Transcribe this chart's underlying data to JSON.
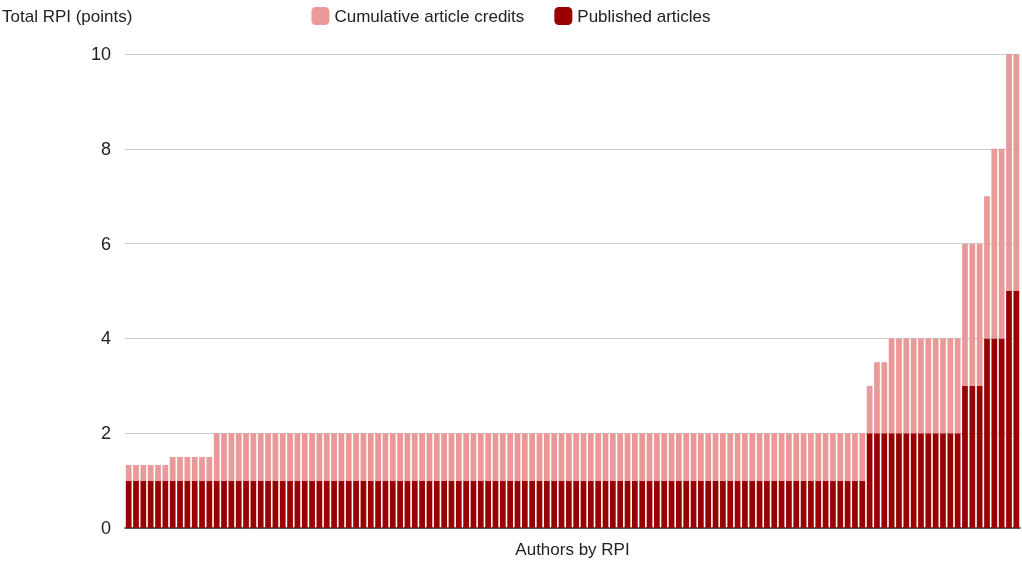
{
  "chart_data": {
    "type": "bar",
    "stacked": true,
    "ylabel": "Total RPI (points)",
    "xlabel": "Authors by RPI",
    "categories": [
      null,
      null,
      null,
      null,
      null,
      null,
      null,
      null,
      null,
      null,
      null,
      null,
      null,
      null,
      null,
      null,
      null,
      null,
      null,
      null,
      null,
      null,
      null,
      null,
      null,
      null,
      null,
      null,
      null,
      null,
      null,
      null,
      null,
      null,
      null,
      null,
      null,
      null,
      null,
      null,
      null,
      null,
      null,
      null,
      null,
      null,
      null,
      null,
      null,
      null,
      null,
      null,
      null,
      null,
      null,
      null,
      null,
      null,
      null,
      null,
      null,
      null,
      null,
      null,
      null,
      null,
      null,
      null,
      null,
      null,
      null,
      null,
      null,
      null,
      null,
      null,
      null,
      null,
      null,
      null,
      null,
      null,
      null,
      null,
      null,
      null,
      null,
      null,
      null,
      null,
      null,
      null,
      null,
      null,
      null,
      null,
      null,
      null,
      null,
      null,
      null,
      null,
      null,
      null,
      null,
      null,
      null,
      null,
      null,
      null,
      null,
      null,
      null,
      null,
      null,
      null,
      null,
      null,
      null,
      null,
      null,
      null
    ],
    "series": [
      {
        "name": "Published articles",
        "color": "#990000",
        "values": [
          1,
          1,
          1,
          1,
          1,
          1,
          1,
          1,
          1,
          1,
          1,
          1,
          1,
          1,
          1,
          1,
          1,
          1,
          1,
          1,
          1,
          1,
          1,
          1,
          1,
          1,
          1,
          1,
          1,
          1,
          1,
          1,
          1,
          1,
          1,
          1,
          1,
          1,
          1,
          1,
          1,
          1,
          1,
          1,
          1,
          1,
          1,
          1,
          1,
          1,
          1,
          1,
          1,
          1,
          1,
          1,
          1,
          1,
          1,
          1,
          1,
          1,
          1,
          1,
          1,
          1,
          1,
          1,
          1,
          1,
          1,
          1,
          1,
          1,
          1,
          1,
          1,
          1,
          1,
          1,
          1,
          1,
          1,
          1,
          1,
          1,
          1,
          1,
          1,
          1,
          1,
          1,
          1,
          1,
          1,
          1,
          1,
          1,
          1,
          1,
          1,
          2,
          2,
          2,
          2,
          2,
          2,
          2,
          2,
          2,
          2,
          2,
          2,
          2,
          3,
          3,
          3,
          4,
          4,
          4,
          5,
          5
        ]
      },
      {
        "name": "Cumulative article credits",
        "color": "#ea9999",
        "values": [
          0.33,
          0.33,
          0.33,
          0.33,
          0.33,
          0.33,
          0.5,
          0.5,
          0.5,
          0.5,
          0.5,
          0.5,
          1,
          1,
          1,
          1,
          1,
          1,
          1,
          1,
          1,
          1,
          1,
          1,
          1,
          1,
          1,
          1,
          1,
          1,
          1,
          1,
          1,
          1,
          1,
          1,
          1,
          1,
          1,
          1,
          1,
          1,
          1,
          1,
          1,
          1,
          1,
          1,
          1,
          1,
          1,
          1,
          1,
          1,
          1,
          1,
          1,
          1,
          1,
          1,
          1,
          1,
          1,
          1,
          1,
          1,
          1,
          1,
          1,
          1,
          1,
          1,
          1,
          1,
          1,
          1,
          1,
          1,
          1,
          1,
          1,
          1,
          1,
          1,
          1,
          1,
          1,
          1,
          1,
          1,
          1,
          1,
          1,
          1,
          1,
          1,
          1,
          1,
          1,
          1,
          1,
          1,
          1.5,
          1.5,
          2,
          2,
          2,
          2,
          2,
          2,
          2,
          2,
          2,
          2,
          3,
          3,
          3,
          3,
          4,
          4,
          5,
          5
        ]
      }
    ],
    "ylim": [
      0,
      10
    ],
    "yticks": [
      0,
      2,
      4,
      6,
      8,
      10
    ],
    "grid": "y",
    "legend": "top"
  }
}
